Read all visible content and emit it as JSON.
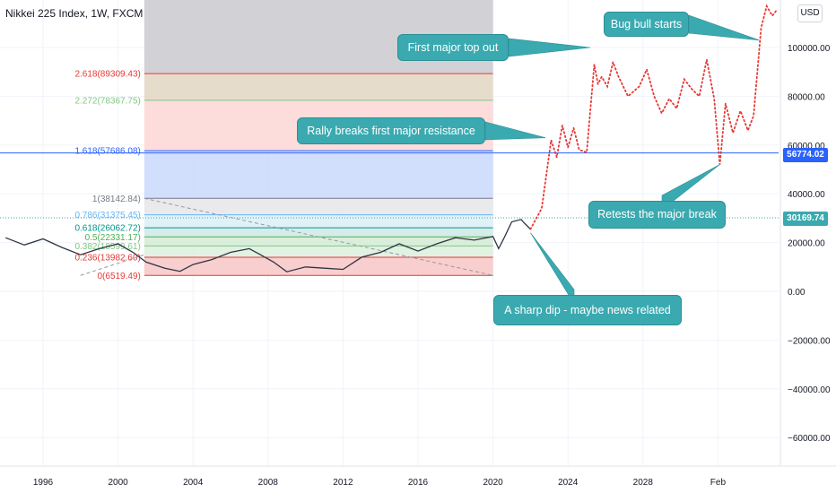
{
  "title": "Nikkei 225 Index, 1W, FXCM",
  "currency_button": "USD",
  "colors": {
    "price_line": "#2f3542",
    "projection": "#e53935",
    "callout_bg": "#3aaab0",
    "hline_blue": "#2962ff",
    "last_price_tag": "#2962ff",
    "current_tag": "#3aaab0"
  },
  "chart_data": {
    "type": "line",
    "title": "Nikkei 225 Index, 1W, FXCM",
    "xlabel": "",
    "ylabel": "",
    "ylim": [
      -70000,
      120000
    ],
    "xlim": [
      1994,
      2036
    ],
    "y_ticks": [
      -60000,
      -40000,
      -20000,
      0,
      20000,
      40000,
      60000,
      80000,
      100000
    ],
    "y_tick_labels": [
      "−60000.00",
      "−40000.00",
      "−20000.00",
      "0.00",
      "20000.00",
      "40000.00",
      "60000.00",
      "80000.00",
      "100000.00"
    ],
    "x_ticks": [
      1996,
      2000,
      2004,
      2008,
      2012,
      2016,
      2020,
      2024,
      2028,
      2032
    ],
    "x_tick_labels": [
      "1996",
      "2000",
      "2004",
      "2008",
      "2012",
      "2016",
      "2020",
      "2024",
      "2028",
      "Feb"
    ],
    "series": [
      {
        "name": "",
        "style": "solid",
        "points": [
          [
            1994,
            22000
          ],
          [
            1995,
            19000
          ],
          [
            1996,
            21500
          ],
          [
            1997,
            18000
          ],
          [
            1998,
            15000
          ],
          [
            1999,
            17500
          ],
          [
            2000,
            19500
          ],
          [
            2000.8,
            16000
          ],
          [
            2001.5,
            12000
          ],
          [
            2002.5,
            9500
          ],
          [
            2003.3,
            8200
          ],
          [
            2004,
            11000
          ],
          [
            2005,
            13000
          ],
          [
            2006,
            16000
          ],
          [
            2007,
            17500
          ],
          [
            2007.6,
            15000
          ],
          [
            2008.3,
            12000
          ],
          [
            2009,
            8000
          ],
          [
            2010,
            10000
          ],
          [
            2011,
            9500
          ],
          [
            2012,
            9000
          ],
          [
            2013,
            14000
          ],
          [
            2014,
            16000
          ],
          [
            2015,
            19500
          ],
          [
            2016,
            16500
          ],
          [
            2017,
            19500
          ],
          [
            2018,
            22000
          ],
          [
            2019,
            21000
          ],
          [
            2020,
            22500
          ],
          [
            2020.3,
            17500
          ],
          [
            2020.6,
            22000
          ],
          [
            2021,
            28500
          ],
          [
            2021.5,
            29500
          ],
          [
            2021.7,
            27800
          ],
          [
            2022,
            25500
          ]
        ]
      },
      {
        "name": "",
        "style": "dotted",
        "points": [
          [
            2022,
            25500
          ],
          [
            2022.6,
            34000
          ],
          [
            2023.1,
            62000
          ],
          [
            2023.4,
            55000
          ],
          [
            2023.7,
            68000
          ],
          [
            2024,
            59000
          ],
          [
            2024.3,
            67000
          ],
          [
            2024.6,
            58000
          ],
          [
            2025,
            57000
          ],
          [
            2025.4,
            93000
          ],
          [
            2025.6,
            85000
          ],
          [
            2025.8,
            88000
          ],
          [
            2026.1,
            84000
          ],
          [
            2026.4,
            94000
          ],
          [
            2026.7,
            88000
          ],
          [
            2027.2,
            80000
          ],
          [
            2027.8,
            84000
          ],
          [
            2028.2,
            91000
          ],
          [
            2028.6,
            80000
          ],
          [
            2029,
            73000
          ],
          [
            2029.4,
            79000
          ],
          [
            2029.8,
            75000
          ],
          [
            2030.2,
            87000
          ],
          [
            2030.6,
            83000
          ],
          [
            2031,
            80000
          ],
          [
            2031.4,
            95000
          ],
          [
            2031.8,
            79000
          ],
          [
            2032.1,
            52000
          ],
          [
            2032.4,
            77000
          ],
          [
            2032.8,
            65000
          ],
          [
            2033.2,
            74000
          ],
          [
            2033.6,
            66000
          ],
          [
            2033.9,
            72000
          ],
          [
            2034.3,
            108000
          ],
          [
            2034.6,
            117000
          ],
          [
            2034.9,
            113000
          ],
          [
            2035.1,
            115000
          ]
        ]
      }
    ],
    "fibonacci": {
      "levels": [
        {
          "label": "0(6519.49)",
          "value": 6519.49,
          "color": "#e53935"
        },
        {
          "label": "0.236(13982.60)",
          "value": 13982.6,
          "color": "#e53935"
        },
        {
          "label": "0.382(18599.61)",
          "value": 18599.61,
          "color": "#81c784"
        },
        {
          "label": "0.5(22331.17)",
          "value": 22331.17,
          "color": "#4caf50"
        },
        {
          "label": "0.618(26062.72)",
          "value": 26062.72,
          "color": "#009688"
        },
        {
          "label": "0.786(31375.45)",
          "value": 31375.45,
          "color": "#64b5f6"
        },
        {
          "label": "1(38142.84)",
          "value": 38142.84,
          "color": "#787b86"
        },
        {
          "label": "1.618(57686.08)",
          "value": 57686.08,
          "color": "#2962ff"
        },
        {
          "label": "2.272(78367.75)",
          "value": 78367.75,
          "color": "#81c784"
        },
        {
          "label": "2.618(89309.43)",
          "value": 89309.43,
          "color": "#e53935"
        }
      ],
      "x_start": 2001.4,
      "x_end": 2020
    },
    "trendline": {
      "from": [
        2001.4,
        38142.84
      ],
      "to": [
        2020,
        6519.49
      ]
    },
    "pre_trendline": {
      "from": [
        1998,
        6519.49
      ],
      "to": [
        2001.4,
        15000
      ]
    },
    "horizontal_line": {
      "value": 56774.02,
      "label": "56774.02"
    },
    "current_price": {
      "value": 30169.74,
      "label": "30169.74"
    },
    "annotations": [
      {
        "text": "Bug bull starts",
        "target": [
          2034.2,
          103000
        ]
      },
      {
        "text": "First major top out",
        "target": [
          2025.2,
          100000
        ]
      },
      {
        "text": "Rally breaks first major resistance",
        "target": [
          2022.8,
          63000
        ]
      },
      {
        "text": "Retests the major break",
        "target": [
          2032.1,
          52000
        ]
      },
      {
        "text": "A sharp dip - maybe news related",
        "target": [
          2022,
          24000
        ]
      }
    ]
  }
}
